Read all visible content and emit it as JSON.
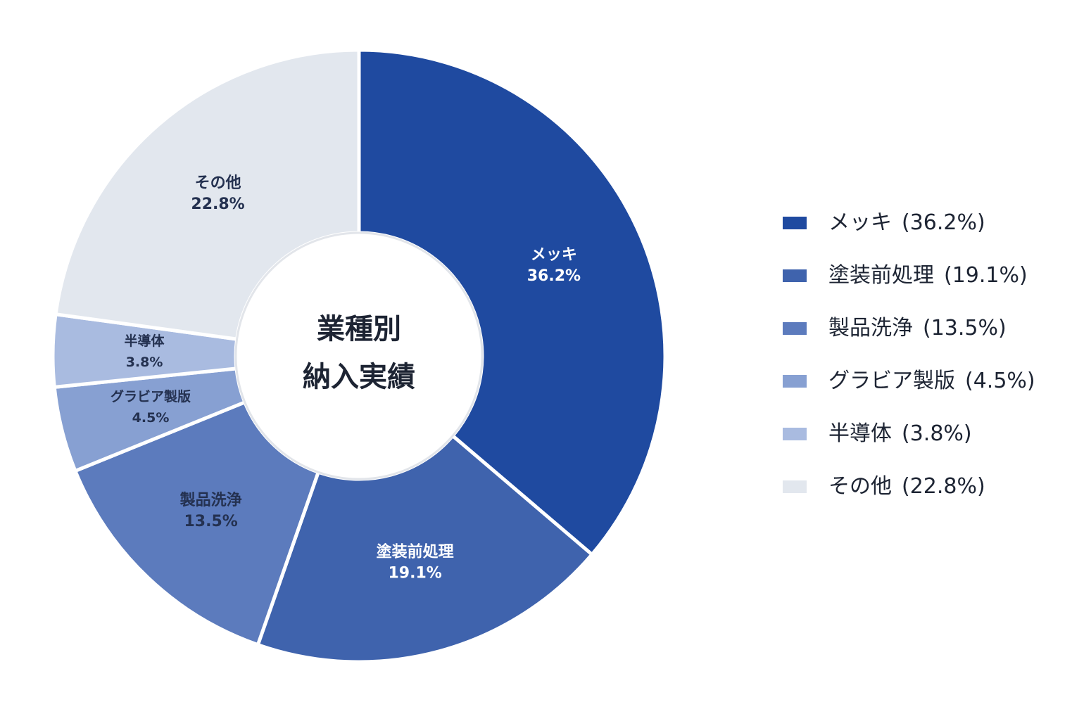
{
  "chart_data": {
    "type": "donut",
    "center_label": [
      "業種別",
      "納入実績"
    ],
    "categories": [
      "メッキ",
      "塗装前処理",
      "製品洗浄",
      "グラビア製版",
      "半導体",
      "その他"
    ],
    "values": [
      36.2,
      19.1,
      13.5,
      4.5,
      3.8,
      22.8
    ],
    "value_labels": [
      "36.2%",
      "19.1%",
      "13.5%",
      "4.5%",
      "3.8%",
      "22.8%"
    ],
    "legend_value_labels": [
      "(36.2%)",
      "(19.1%)",
      "(13.5%)",
      "(4.5%)",
      "(3.8%)",
      "(22.8%)"
    ],
    "colors": [
      "#1f4aa0",
      "#3f63ad",
      "#5c7bbd",
      "#87a0d2",
      "#a9bbe0",
      "#e2e7ee"
    ],
    "legend": "right"
  }
}
